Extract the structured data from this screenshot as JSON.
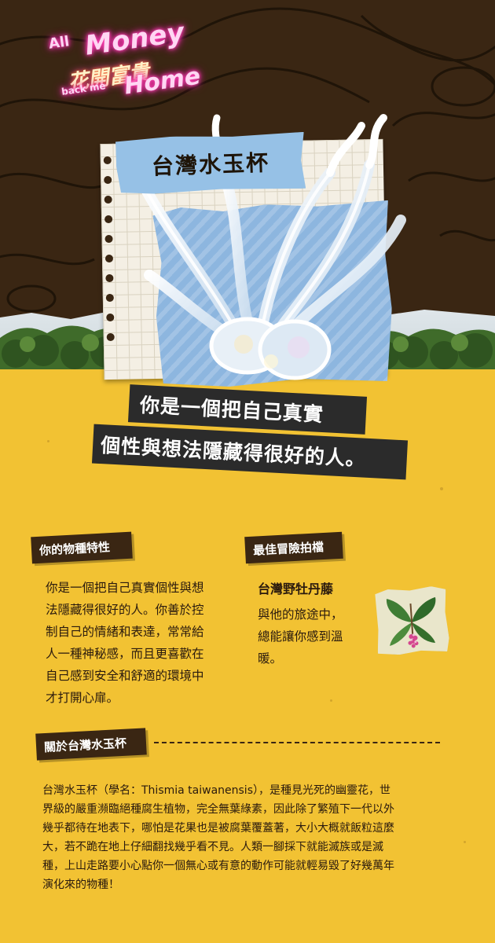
{
  "logo": {
    "line1": "All",
    "line2": "Money",
    "line3": "花開富貴",
    "line4": "back me",
    "line5": "Home"
  },
  "title": "台灣水玉杯",
  "slogan": {
    "line1": "你是一個把自己真實",
    "line2": "個性與想法隱藏得很好的人。"
  },
  "species": {
    "label": "你的物種特性",
    "lines": [
      "你是一個把自己真實個性與想",
      "法隱藏得很好的人。你善於控",
      "制自己的情緒和表達，常常給",
      "人一種神秘感，而且更喜歡在",
      "自己感到安全和舒適的環境中",
      "才打開心扉。"
    ]
  },
  "partner": {
    "label": "最佳冒險拍檔",
    "name": "台灣野牡丹藤",
    "lines": [
      "與他的旅途中，",
      "總能讓你感到溫",
      "暖。"
    ]
  },
  "about": {
    "label": "關於台灣水玉杯",
    "lines": [
      "台灣水玉杯（學名：Thismia taiwanensis），是種見光死的幽靈花，世",
      "界級的嚴重瀕臨絕種腐生植物，完全無葉綠素，因此除了繁殖下一代以外",
      "幾乎都待在地表下，哪怕是花果也是被腐葉覆蓋著，大小大概就飯粒這麼",
      "大，若不跪在地上仔細翻找幾乎看不見。人類一腳採下就能滅族或是滅",
      "種，上山走路要小心點你一個無心或有意的動作可能就輕易毀了好幾萬年",
      "演化來的物種！"
    ]
  },
  "colors": {
    "yellow": "#f2c233",
    "dark_brown": "#3a2613",
    "tag_blue": "#96c1e6",
    "neon_pink": "#ff3fb3"
  }
}
